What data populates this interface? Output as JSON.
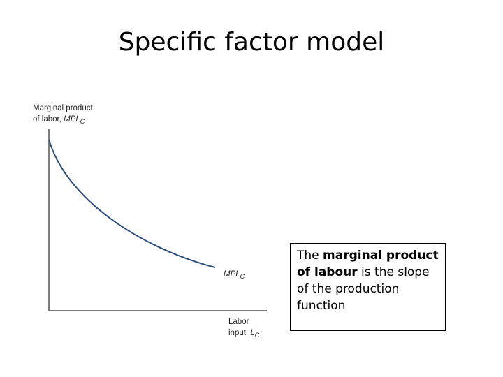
{
  "header": {
    "title": "Specific factor model"
  },
  "diagram": {
    "y_axis_label": {
      "line1": "Marginal product",
      "line2": "of labor, ",
      "variable": "MPL",
      "subscript": "C"
    },
    "curve_label": {
      "variable": "MPL",
      "subscript": "C"
    },
    "x_axis_label": {
      "line1": "Labor",
      "line2": "input, ",
      "variable": "L",
      "subscript": "C"
    }
  },
  "note": {
    "before": "The ",
    "bold": "marginal product of labour",
    "after": " is the slope of the production function"
  }
}
